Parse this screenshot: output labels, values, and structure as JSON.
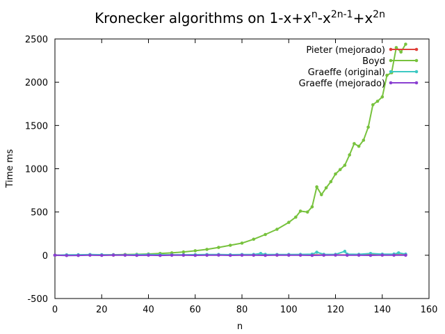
{
  "chart_data": {
    "type": "line",
    "title": "Kronecker algorithms on 1-x+x",
    "title_parts": [
      {
        "text": "Kronecker algorithms on 1-x+x",
        "sup": false
      },
      {
        "text": "n",
        "sup": true
      },
      {
        "text": "-x",
        "sup": false
      },
      {
        "text": "2n-1",
        "sup": true
      },
      {
        "text": "+x",
        "sup": false
      },
      {
        "text": "2n",
        "sup": true
      }
    ],
    "xlabel": "n",
    "ylabel": "Time ms",
    "xlim": [
      0,
      160
    ],
    "ylim": [
      -500,
      2500
    ],
    "xticks": [
      0,
      20,
      40,
      60,
      80,
      100,
      120,
      140,
      160
    ],
    "yticks": [
      -500,
      0,
      500,
      1000,
      1500,
      2000,
      2500
    ],
    "grid": false,
    "legend_position": "top-right",
    "series": [
      {
        "name": "Pieter (mejorado)",
        "color": "#e0403a",
        "x": [
          0,
          5,
          10,
          15,
          20,
          25,
          30,
          35,
          40,
          45,
          50,
          55,
          60,
          65,
          70,
          75,
          80,
          85,
          90,
          95,
          100,
          105,
          110,
          115,
          120,
          125,
          130,
          135,
          140,
          145,
          150
        ],
        "y": [
          0,
          3,
          2,
          4,
          3,
          2,
          4,
          3,
          5,
          3,
          4,
          2,
          4,
          3,
          5,
          3,
          4,
          3,
          5,
          2,
          4,
          3,
          5,
          3,
          4,
          3,
          5,
          4,
          3,
          6,
          4
        ]
      },
      {
        "name": "Boyd",
        "color": "#77c23d",
        "x": [
          0,
          5,
          10,
          15,
          20,
          25,
          30,
          35,
          40,
          45,
          50,
          55,
          60,
          65,
          70,
          75,
          80,
          85,
          90,
          95,
          100,
          103,
          105,
          108,
          110,
          112,
          114,
          116,
          118,
          120,
          122,
          124,
          126,
          128,
          130,
          132,
          134,
          136,
          138,
          140,
          142,
          144,
          146,
          148,
          150
        ],
        "y": [
          0,
          1,
          2,
          3,
          4,
          6,
          8,
          11,
          15,
          20,
          28,
          38,
          52,
          68,
          90,
          115,
          140,
          185,
          240,
          300,
          380,
          440,
          510,
          500,
          560,
          790,
          700,
          780,
          850,
          940,
          990,
          1040,
          1160,
          1290,
          1260,
          1330,
          1480,
          1740,
          1780,
          1830,
          2080,
          2110,
          2400,
          2350,
          2440
        ]
      },
      {
        "name": "Graeffe (original)",
        "color": "#3dc9c3",
        "x": [
          0,
          5,
          10,
          15,
          20,
          25,
          30,
          35,
          40,
          45,
          50,
          55,
          60,
          65,
          70,
          75,
          80,
          85,
          88,
          90,
          95,
          100,
          105,
          110,
          112,
          115,
          120,
          124,
          125,
          130,
          135,
          140,
          145,
          147,
          150
        ],
        "y": [
          0,
          4,
          6,
          8,
          6,
          5,
          4,
          7,
          8,
          6,
          5,
          6,
          7,
          8,
          9,
          7,
          8,
          9,
          20,
          10,
          8,
          9,
          10,
          12,
          35,
          11,
          10,
          45,
          12,
          11,
          20,
          12,
          14,
          28,
          13
        ]
      },
      {
        "name": "Graeffe (mejorado)",
        "color": "#8a3fd1",
        "x": [
          0,
          5,
          10,
          15,
          20,
          25,
          30,
          35,
          40,
          45,
          50,
          55,
          60,
          65,
          70,
          75,
          80,
          85,
          90,
          95,
          100,
          105,
          110,
          115,
          120,
          125,
          130,
          135,
          140,
          145,
          150
        ],
        "y": [
          0,
          -3,
          -2,
          1,
          -1,
          2,
          0,
          -1,
          1,
          -2,
          0,
          1,
          -1,
          0,
          2,
          -1,
          1,
          0,
          -1,
          2,
          1,
          0,
          -1,
          1,
          2,
          0,
          1,
          -1,
          2,
          1,
          0
        ]
      }
    ]
  }
}
